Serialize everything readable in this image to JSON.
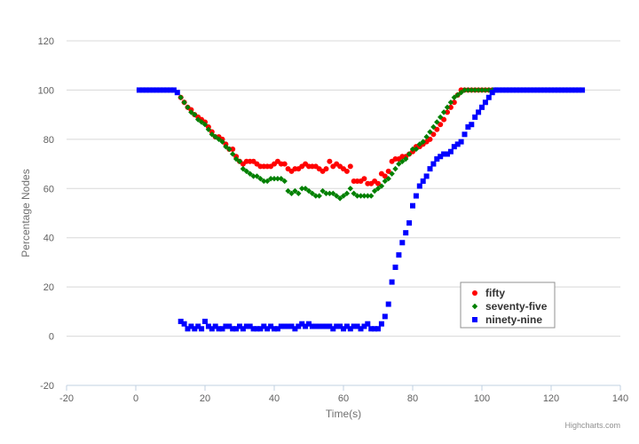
{
  "chart_data": {
    "type": "scatter",
    "title": "",
    "xlabel": "Time(s)",
    "ylabel": "Percentage Nodes",
    "xlim": [
      -20,
      140
    ],
    "ylim": [
      -20,
      120
    ],
    "x_ticks": [
      -20,
      0,
      20,
      40,
      60,
      80,
      100,
      120,
      140
    ],
    "y_ticks": [
      -20,
      0,
      20,
      40,
      60,
      80,
      100,
      120
    ],
    "grid": "horizontal",
    "legend_position": "bottom-right",
    "credit": "Highcharts.com",
    "series": [
      {
        "name": "fifty",
        "color": "#ff0000",
        "marker": "circle",
        "points": [
          [
            13,
            97
          ],
          [
            14,
            95
          ],
          [
            15,
            93
          ],
          [
            16,
            92
          ],
          [
            17,
            90
          ],
          [
            18,
            89
          ],
          [
            19,
            88
          ],
          [
            20,
            87
          ],
          [
            21,
            85
          ],
          [
            22,
            83
          ],
          [
            23,
            81
          ],
          [
            24,
            81
          ],
          [
            25,
            80
          ],
          [
            26,
            78
          ],
          [
            27,
            76
          ],
          [
            28,
            76
          ],
          [
            29,
            73
          ],
          [
            30,
            71
          ],
          [
            31,
            70
          ],
          [
            32,
            71
          ],
          [
            33,
            71
          ],
          [
            34,
            71
          ],
          [
            35,
            70
          ],
          [
            36,
            69
          ],
          [
            37,
            69
          ],
          [
            38,
            69
          ],
          [
            39,
            69
          ],
          [
            40,
            70
          ],
          [
            41,
            71
          ],
          [
            42,
            70
          ],
          [
            43,
            70
          ],
          [
            44,
            68
          ],
          [
            45,
            67
          ],
          [
            46,
            68
          ],
          [
            47,
            68
          ],
          [
            48,
            69
          ],
          [
            49,
            70
          ],
          [
            50,
            69
          ],
          [
            51,
            69
          ],
          [
            52,
            69
          ],
          [
            53,
            68
          ],
          [
            54,
            67
          ],
          [
            55,
            68
          ],
          [
            56,
            71
          ],
          [
            57,
            69
          ],
          [
            58,
            70
          ],
          [
            59,
            69
          ],
          [
            60,
            68
          ],
          [
            61,
            67
          ],
          [
            62,
            69
          ],
          [
            63,
            63
          ],
          [
            64,
            63
          ],
          [
            65,
            63
          ],
          [
            66,
            64
          ],
          [
            67,
            62
          ],
          [
            68,
            62
          ],
          [
            69,
            63
          ],
          [
            70,
            62
          ],
          [
            71,
            66
          ],
          [
            72,
            65
          ],
          [
            73,
            67
          ],
          [
            74,
            71
          ],
          [
            75,
            72
          ],
          [
            76,
            72
          ],
          [
            77,
            73
          ],
          [
            78,
            73
          ],
          [
            79,
            74
          ],
          [
            80,
            75
          ],
          [
            81,
            77
          ],
          [
            82,
            77
          ],
          [
            83,
            78
          ],
          [
            84,
            79
          ],
          [
            85,
            80
          ],
          [
            86,
            82
          ],
          [
            87,
            84
          ],
          [
            88,
            86
          ],
          [
            89,
            88
          ],
          [
            90,
            91
          ],
          [
            91,
            93
          ],
          [
            92,
            95
          ],
          [
            93,
            98
          ],
          [
            94,
            100
          ],
          [
            95,
            100
          ],
          [
            96,
            100
          ],
          [
            97,
            100
          ],
          [
            98,
            100
          ],
          [
            99,
            100
          ],
          [
            100,
            100
          ],
          [
            101,
            100
          ],
          [
            102,
            100
          ],
          [
            103,
            100
          ],
          [
            104,
            100
          ]
        ]
      },
      {
        "name": "seventy-five",
        "color": "#008000",
        "marker": "diamond",
        "points": [
          [
            13,
            97
          ],
          [
            14,
            95
          ],
          [
            15,
            93
          ],
          [
            16,
            91
          ],
          [
            17,
            90
          ],
          [
            18,
            88
          ],
          [
            19,
            87
          ],
          [
            20,
            86
          ],
          [
            21,
            84
          ],
          [
            22,
            82
          ],
          [
            23,
            81
          ],
          [
            24,
            80
          ],
          [
            25,
            79
          ],
          [
            26,
            77
          ],
          [
            27,
            76
          ],
          [
            28,
            74
          ],
          [
            29,
            72
          ],
          [
            30,
            71
          ],
          [
            31,
            68
          ],
          [
            32,
            67
          ],
          [
            33,
            66
          ],
          [
            34,
            65
          ],
          [
            35,
            65
          ],
          [
            36,
            64
          ],
          [
            37,
            63
          ],
          [
            38,
            63
          ],
          [
            39,
            64
          ],
          [
            40,
            64
          ],
          [
            41,
            64
          ],
          [
            42,
            64
          ],
          [
            43,
            63
          ],
          [
            44,
            59
          ],
          [
            45,
            58
          ],
          [
            46,
            59
          ],
          [
            47,
            58
          ],
          [
            48,
            60
          ],
          [
            49,
            60
          ],
          [
            50,
            59
          ],
          [
            51,
            58
          ],
          [
            52,
            57
          ],
          [
            53,
            57
          ],
          [
            54,
            59
          ],
          [
            55,
            58
          ],
          [
            56,
            58
          ],
          [
            57,
            58
          ],
          [
            58,
            57
          ],
          [
            59,
            56
          ],
          [
            60,
            57
          ],
          [
            61,
            58
          ],
          [
            62,
            60
          ],
          [
            63,
            58
          ],
          [
            64,
            57
          ],
          [
            65,
            57
          ],
          [
            66,
            57
          ],
          [
            67,
            57
          ],
          [
            68,
            57
          ],
          [
            69,
            59
          ],
          [
            70,
            60
          ],
          [
            71,
            61
          ],
          [
            72,
            63
          ],
          [
            73,
            64
          ],
          [
            74,
            66
          ],
          [
            75,
            68
          ],
          [
            76,
            70
          ],
          [
            77,
            71
          ],
          [
            78,
            72
          ],
          [
            79,
            74
          ],
          [
            80,
            76
          ],
          [
            81,
            76
          ],
          [
            82,
            78
          ],
          [
            83,
            79
          ],
          [
            84,
            81
          ],
          [
            85,
            83
          ],
          [
            86,
            85
          ],
          [
            87,
            87
          ],
          [
            88,
            89
          ],
          [
            89,
            91
          ],
          [
            90,
            93
          ],
          [
            91,
            95
          ],
          [
            92,
            97
          ],
          [
            93,
            98
          ],
          [
            94,
            99
          ],
          [
            95,
            100
          ],
          [
            96,
            100
          ],
          [
            97,
            100
          ],
          [
            98,
            100
          ],
          [
            99,
            100
          ],
          [
            100,
            100
          ],
          [
            101,
            100
          ],
          [
            102,
            100
          ],
          [
            103,
            100
          ],
          [
            104,
            100
          ]
        ]
      },
      {
        "name": "ninety-nine",
        "color": "#0000ff",
        "marker": "square",
        "points": [
          [
            1,
            100
          ],
          [
            2,
            100
          ],
          [
            3,
            100
          ],
          [
            4,
            100
          ],
          [
            5,
            100
          ],
          [
            6,
            100
          ],
          [
            7,
            100
          ],
          [
            8,
            100
          ],
          [
            9,
            100
          ],
          [
            10,
            100
          ],
          [
            11,
            100
          ],
          [
            12,
            99
          ],
          [
            13,
            6
          ],
          [
            14,
            5
          ],
          [
            15,
            3
          ],
          [
            16,
            4
          ],
          [
            17,
            3
          ],
          [
            18,
            4
          ],
          [
            19,
            3
          ],
          [
            20,
            6
          ],
          [
            21,
            4
          ],
          [
            22,
            3
          ],
          [
            23,
            4
          ],
          [
            24,
            3
          ],
          [
            25,
            3
          ],
          [
            26,
            4
          ],
          [
            27,
            4
          ],
          [
            28,
            3
          ],
          [
            29,
            3
          ],
          [
            30,
            4
          ],
          [
            31,
            3
          ],
          [
            32,
            4
          ],
          [
            33,
            4
          ],
          [
            34,
            3
          ],
          [
            35,
            3
          ],
          [
            36,
            3
          ],
          [
            37,
            4
          ],
          [
            38,
            3
          ],
          [
            39,
            4
          ],
          [
            40,
            3
          ],
          [
            41,
            3
          ],
          [
            42,
            4
          ],
          [
            43,
            4
          ],
          [
            44,
            4
          ],
          [
            45,
            4
          ],
          [
            46,
            3
          ],
          [
            47,
            4
          ],
          [
            48,
            5
          ],
          [
            49,
            4
          ],
          [
            50,
            5
          ],
          [
            51,
            4
          ],
          [
            52,
            4
          ],
          [
            53,
            4
          ],
          [
            54,
            4
          ],
          [
            55,
            4
          ],
          [
            56,
            4
          ],
          [
            57,
            3
          ],
          [
            58,
            4
          ],
          [
            59,
            4
          ],
          [
            60,
            3
          ],
          [
            61,
            4
          ],
          [
            62,
            3
          ],
          [
            63,
            4
          ],
          [
            64,
            4
          ],
          [
            65,
            3
          ],
          [
            66,
            4
          ],
          [
            67,
            5
          ],
          [
            68,
            3
          ],
          [
            69,
            3
          ],
          [
            70,
            3
          ],
          [
            71,
            5
          ],
          [
            72,
            8
          ],
          [
            73,
            13
          ],
          [
            74,
            22
          ],
          [
            75,
            28
          ],
          [
            76,
            33
          ],
          [
            77,
            38
          ],
          [
            78,
            42
          ],
          [
            79,
            46
          ],
          [
            80,
            53
          ],
          [
            81,
            57
          ],
          [
            82,
            61
          ],
          [
            83,
            63
          ],
          [
            84,
            65
          ],
          [
            85,
            68
          ],
          [
            86,
            70
          ],
          [
            87,
            72
          ],
          [
            88,
            73
          ],
          [
            89,
            74
          ],
          [
            90,
            74
          ],
          [
            91,
            75
          ],
          [
            92,
            77
          ],
          [
            93,
            78
          ],
          [
            94,
            79
          ],
          [
            95,
            82
          ],
          [
            96,
            85
          ],
          [
            97,
            86
          ],
          [
            98,
            89
          ],
          [
            99,
            91
          ],
          [
            100,
            93
          ],
          [
            101,
            95
          ],
          [
            102,
            97
          ],
          [
            103,
            99
          ],
          [
            104,
            100
          ],
          [
            105,
            100
          ],
          [
            106,
            100
          ],
          [
            107,
            100
          ],
          [
            108,
            100
          ],
          [
            109,
            100
          ],
          [
            110,
            100
          ],
          [
            111,
            100
          ],
          [
            112,
            100
          ],
          [
            113,
            100
          ],
          [
            114,
            100
          ],
          [
            115,
            100
          ],
          [
            116,
            100
          ],
          [
            117,
            100
          ],
          [
            118,
            100
          ],
          [
            119,
            100
          ],
          [
            120,
            100
          ],
          [
            121,
            100
          ],
          [
            122,
            100
          ],
          [
            123,
            100
          ],
          [
            124,
            100
          ],
          [
            125,
            100
          ],
          [
            126,
            100
          ],
          [
            127,
            100
          ],
          [
            128,
            100
          ],
          [
            129,
            100
          ]
        ]
      }
    ]
  }
}
